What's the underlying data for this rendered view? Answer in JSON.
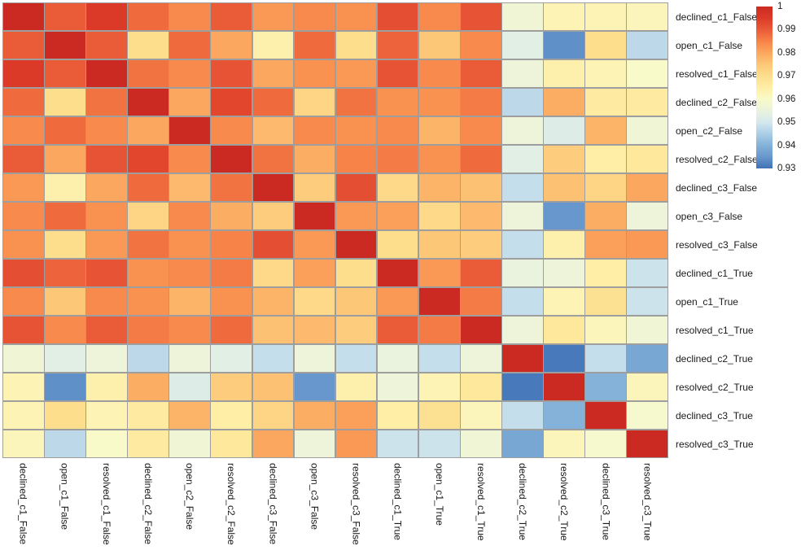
{
  "chart_data": {
    "type": "heatmap",
    "title": "",
    "xlabel": "",
    "ylabel": "",
    "grid_color": "#9e9e9e",
    "label_color": "#1a1a1a",
    "categories": [
      "declined_c1_False",
      "open_c1_False",
      "resolved_c1_False",
      "declined_c2_False",
      "open_c2_False",
      "resolved_c2_False",
      "declined_c3_False",
      "open_c3_False",
      "resolved_c3_False",
      "declined_c1_True",
      "open_c1_True",
      "resolved_c1_True",
      "declined_c2_True",
      "resolved_c2_True",
      "declined_c3_True",
      "resolved_c3_True"
    ],
    "matrix": [
      [
        1.0,
        0.99,
        0.995,
        0.988,
        0.984,
        0.99,
        0.982,
        0.984,
        0.983,
        0.992,
        0.984,
        0.991,
        0.957,
        0.963,
        0.963,
        0.962
      ],
      [
        0.99,
        1.0,
        0.99,
        0.97,
        0.988,
        0.98,
        0.964,
        0.988,
        0.97,
        0.989,
        0.975,
        0.984,
        0.953,
        0.934,
        0.97,
        0.947
      ],
      [
        0.995,
        0.99,
        1.0,
        0.987,
        0.984,
        0.991,
        0.98,
        0.983,
        0.982,
        0.991,
        0.984,
        0.99,
        0.956,
        0.964,
        0.963,
        0.96
      ],
      [
        0.988,
        0.97,
        0.987,
        1.0,
        0.98,
        0.993,
        0.988,
        0.972,
        0.987,
        0.983,
        0.983,
        0.986,
        0.947,
        0.979,
        0.966,
        0.966
      ],
      [
        0.984,
        0.988,
        0.984,
        0.98,
        1.0,
        0.984,
        0.977,
        0.984,
        0.983,
        0.984,
        0.978,
        0.984,
        0.956,
        0.952,
        0.978,
        0.957
      ],
      [
        0.99,
        0.98,
        0.991,
        0.993,
        0.984,
        1.0,
        0.987,
        0.979,
        0.985,
        0.986,
        0.983,
        0.988,
        0.953,
        0.974,
        0.965,
        0.967
      ],
      [
        0.982,
        0.964,
        0.98,
        0.988,
        0.977,
        0.987,
        1.0,
        0.974,
        0.992,
        0.971,
        0.978,
        0.976,
        0.948,
        0.976,
        0.972,
        0.98
      ],
      [
        0.984,
        0.988,
        0.983,
        0.972,
        0.984,
        0.979,
        0.974,
        1.0,
        0.982,
        0.981,
        0.971,
        0.977,
        0.956,
        0.935,
        0.979,
        0.956
      ],
      [
        0.983,
        0.97,
        0.982,
        0.987,
        0.983,
        0.985,
        0.992,
        0.982,
        1.0,
        0.97,
        0.975,
        0.974,
        0.948,
        0.964,
        0.981,
        0.982
      ],
      [
        0.992,
        0.989,
        0.991,
        0.983,
        0.984,
        0.986,
        0.971,
        0.981,
        0.97,
        1.0,
        0.982,
        0.99,
        0.955,
        0.956,
        0.965,
        0.949
      ],
      [
        0.984,
        0.975,
        0.984,
        0.983,
        0.978,
        0.983,
        0.978,
        0.971,
        0.975,
        0.982,
        1.0,
        0.986,
        0.948,
        0.963,
        0.969,
        0.949
      ],
      [
        0.991,
        0.984,
        0.99,
        0.986,
        0.984,
        0.988,
        0.976,
        0.977,
        0.974,
        0.99,
        0.986,
        1.0,
        0.956,
        0.967,
        0.962,
        0.957
      ],
      [
        0.957,
        0.953,
        0.956,
        0.947,
        0.956,
        0.953,
        0.948,
        0.956,
        0.948,
        0.955,
        0.948,
        0.956,
        1.0,
        0.931,
        0.948,
        0.938
      ],
      [
        0.963,
        0.934,
        0.964,
        0.979,
        0.952,
        0.974,
        0.976,
        0.935,
        0.964,
        0.956,
        0.963,
        0.967,
        0.931,
        1.0,
        0.94,
        0.962
      ],
      [
        0.963,
        0.97,
        0.963,
        0.966,
        0.978,
        0.965,
        0.972,
        0.979,
        0.981,
        0.965,
        0.969,
        0.962,
        0.948,
        0.94,
        1.0,
        0.959
      ],
      [
        0.962,
        0.947,
        0.96,
        0.966,
        0.957,
        0.967,
        0.98,
        0.956,
        0.982,
        0.949,
        0.949,
        0.957,
        0.938,
        0.962,
        0.959,
        1.0
      ]
    ],
    "colorbar": {
      "vmin": 0.93,
      "vmax": 1.0,
      "ticks": [
        "1",
        "0.99",
        "0.98",
        "0.97",
        "0.96",
        "0.95",
        "0.94",
        "0.93"
      ],
      "position": "top-right"
    },
    "colormap": {
      "name": "RdYlBu_r",
      "stops": [
        {
          "v": 0.93,
          "c": "#3f72b7"
        },
        {
          "v": 0.935,
          "c": "#6797cc"
        },
        {
          "v": 0.94,
          "c": "#84b2d9"
        },
        {
          "v": 0.945,
          "c": "#abcee6"
        },
        {
          "v": 0.95,
          "c": "#d5e8ee"
        },
        {
          "v": 0.955,
          "c": "#eaf3dd"
        },
        {
          "v": 0.96,
          "c": "#f9fac9"
        },
        {
          "v": 0.965,
          "c": "#feeea6"
        },
        {
          "v": 0.97,
          "c": "#fdde8d"
        },
        {
          "v": 0.975,
          "c": "#fdc778"
        },
        {
          "v": 0.98,
          "c": "#fca75f"
        },
        {
          "v": 0.985,
          "c": "#f78348"
        },
        {
          "v": 0.99,
          "c": "#ea5b38"
        },
        {
          "v": 0.995,
          "c": "#dc3a28"
        },
        {
          "v": 1.0,
          "c": "#cb2a22"
        }
      ]
    },
    "legend": null,
    "grid_lines": true
  }
}
